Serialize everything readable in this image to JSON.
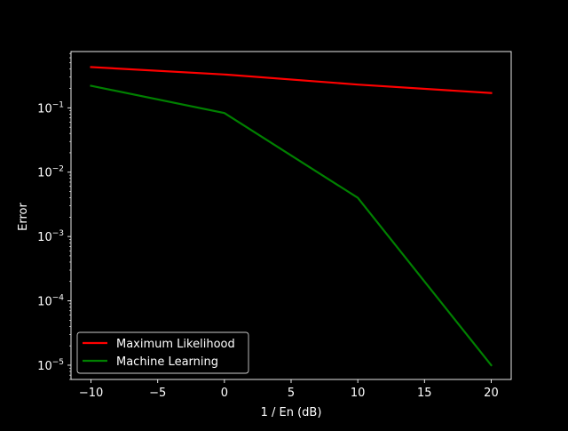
{
  "chart_data": {
    "type": "line",
    "xlabel": "1 / En (dB)",
    "ylabel": "Error",
    "yscale": "log",
    "xlim": [
      -11.5,
      21.5
    ],
    "ylim": [
      6e-06,
      0.75
    ],
    "x_ticks": [
      -10,
      -5,
      0,
      5,
      10,
      15,
      20
    ],
    "x_tick_labels": [
      "−10",
      "−5",
      "0",
      "5",
      "10",
      "15",
      "20"
    ],
    "y_ticks": [
      {
        "value": 1e-05,
        "base": "10",
        "exp": "−5"
      },
      {
        "value": 0.0001,
        "base": "10",
        "exp": "−4"
      },
      {
        "value": 0.001,
        "base": "10",
        "exp": "−3"
      },
      {
        "value": 0.01,
        "base": "10",
        "exp": "−2"
      },
      {
        "value": 0.1,
        "base": "10",
        "exp": "−1"
      }
    ],
    "grid": false,
    "legend_position": "bottom-left",
    "series": [
      {
        "name": "Maximum Likelihood",
        "color": "#ff0000",
        "x": [
          -10,
          0,
          10,
          20
        ],
        "values": [
          0.43,
          0.33,
          0.23,
          0.17
        ]
      },
      {
        "name": "Machine Learning",
        "color": "#008000",
        "x": [
          -10,
          0,
          10,
          20
        ],
        "values": [
          0.22,
          0.083,
          0.004,
          1e-05
        ]
      }
    ]
  }
}
